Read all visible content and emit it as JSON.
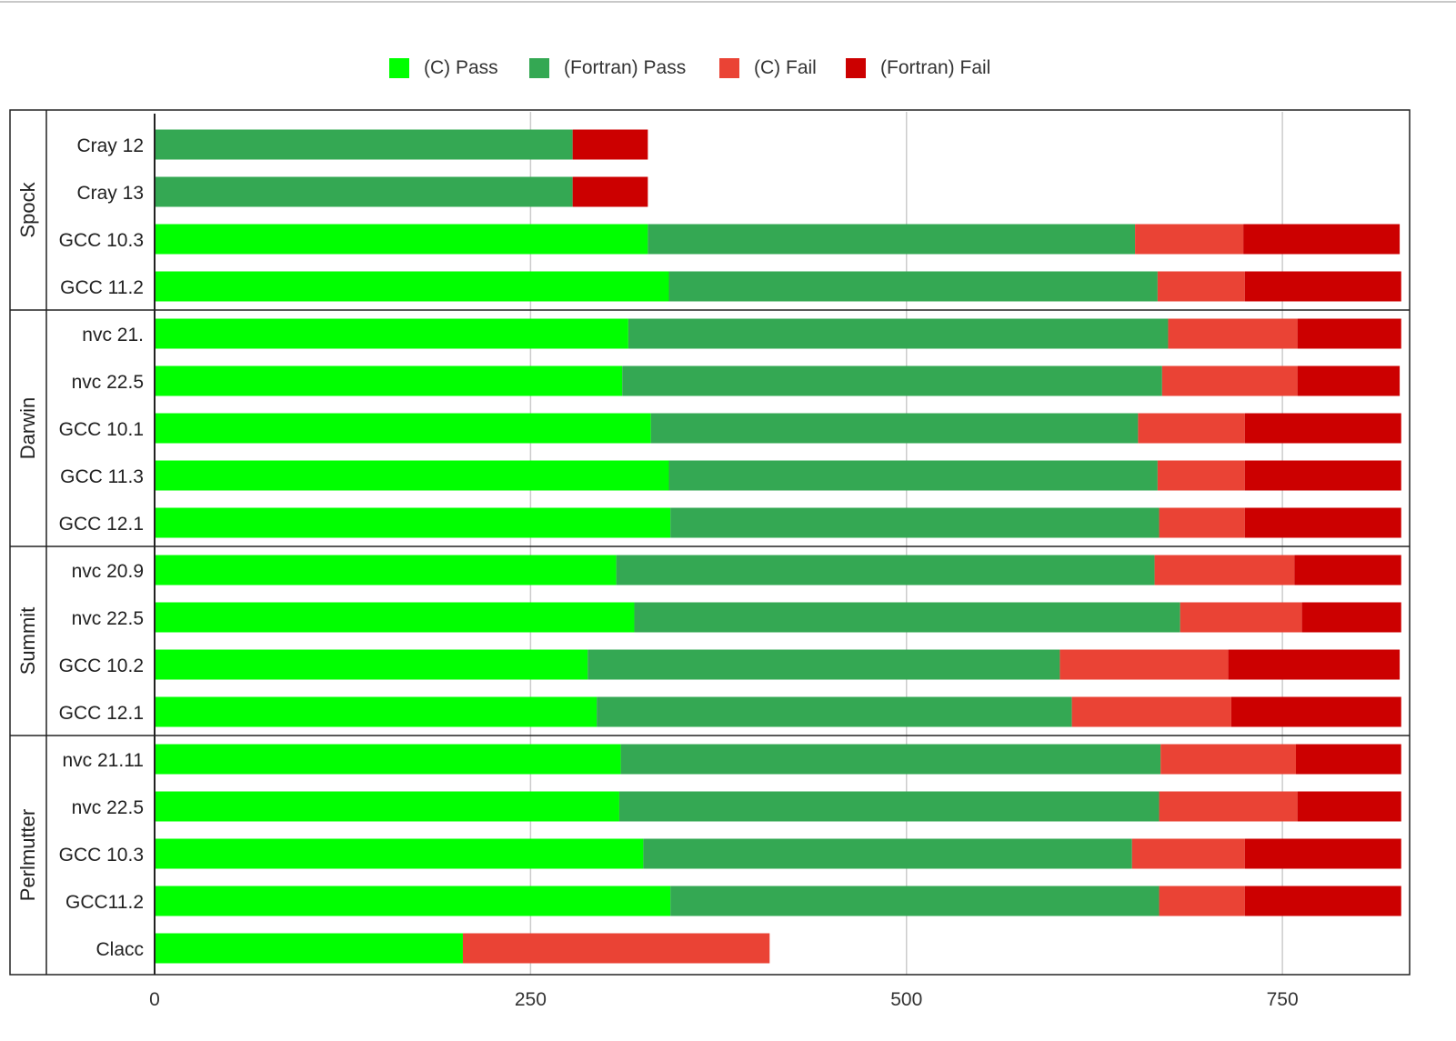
{
  "chart_data": {
    "type": "bar",
    "orientation": "horizontal",
    "stacked": true,
    "grouped_axis": true,
    "title": "",
    "xlabel": "",
    "ylabel": "",
    "xlim": [
      0,
      830
    ],
    "xticks": [
      0,
      250,
      500,
      750
    ],
    "grid": true,
    "legend_position": "top",
    "series": [
      {
        "name": "(C) Pass",
        "color": "#00ff00"
      },
      {
        "name": "(Fortran) Pass",
        "color": "#34a853"
      },
      {
        "name": "(C) Fail",
        "color": "#ea4335"
      },
      {
        "name": "(Fortran) Fail",
        "color": "#cc0000"
      }
    ],
    "groups": [
      {
        "name": "Spock",
        "bars": [
          {
            "label": "Cray 12",
            "values": [
              0,
              278,
              0,
              50
            ]
          },
          {
            "label": "Cray 13",
            "values": [
              0,
              278,
              0,
              50
            ]
          },
          {
            "label": "GCC 10.3",
            "values": [
              328,
              324,
              72,
              104
            ]
          },
          {
            "label": "GCC 11.2",
            "values": [
              342,
              325,
              58,
              104
            ]
          }
        ]
      },
      {
        "name": "Darwin",
        "bars": [
          {
            "label": "nvc 21.",
            "values": [
              315,
              359,
              86,
              69
            ]
          },
          {
            "label": "nvc 22.5",
            "values": [
              311,
              359,
              90,
              68
            ]
          },
          {
            "label": "GCC 10.1",
            "values": [
              330,
              324,
              71,
              104
            ]
          },
          {
            "label": "GCC 11.3",
            "values": [
              342,
              325,
              58,
              104
            ]
          },
          {
            "label": "GCC 12.1",
            "values": [
              343,
              325,
              57,
              104
            ]
          }
        ]
      },
      {
        "name": "Summit",
        "bars": [
          {
            "label": "nvc 20.9",
            "values": [
              307,
              358,
              93,
              71
            ]
          },
          {
            "label": "nvc 22.5",
            "values": [
              319,
              363,
              81,
              66
            ]
          },
          {
            "label": "GCC 10.2",
            "values": [
              288,
              314,
              112,
              114
            ]
          },
          {
            "label": "GCC 12.1",
            "values": [
              294,
              316,
              106,
              113
            ]
          }
        ]
      },
      {
        "name": "Perlmutter",
        "bars": [
          {
            "label": "nvc 21.11",
            "values": [
              310,
              359,
              90,
              70
            ]
          },
          {
            "label": "nvc 22.5",
            "values": [
              309,
              359,
              92,
              69
            ]
          },
          {
            "label": "GCC 10.3",
            "values": [
              325,
              325,
              75,
              104
            ]
          },
          {
            "label": "GCC11.2",
            "values": [
              343,
              325,
              57,
              104
            ]
          },
          {
            "label": "Clacc",
            "values": [
              205,
              0,
              204,
              0
            ]
          }
        ]
      }
    ]
  }
}
